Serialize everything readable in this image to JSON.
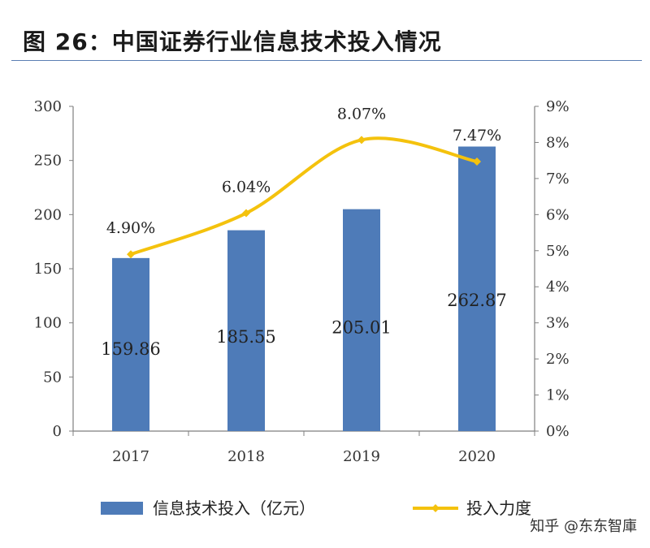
{
  "figure": {
    "title": "图 26：中国证券行业信息技术投入情况",
    "watermark": "知乎 @东东智庫"
  },
  "colors": {
    "bar": "#4e7bb8",
    "line": "#f4c20d",
    "axis": "#7f7f7f",
    "title_rule": "#5b7fb3"
  },
  "chart_data": {
    "type": "bar",
    "categories": [
      "2017",
      "2018",
      "2019",
      "2020"
    ],
    "series": [
      {
        "name": "信息技术投入（亿元）",
        "type": "bar",
        "axis": "left",
        "values": [
          159.86,
          185.55,
          205.01,
          262.87
        ],
        "labels": [
          "159.86",
          "185.55",
          "205.01",
          "262.87"
        ]
      },
      {
        "name": "投入力度",
        "type": "line",
        "axis": "right",
        "values": [
          4.9,
          6.04,
          8.07,
          7.47
        ],
        "labels": [
          "4.90%",
          "6.04%",
          "8.07%",
          "7.47%"
        ]
      }
    ],
    "left_axis": {
      "ylim": [
        0,
        300
      ],
      "ticks": [
        "0",
        "50",
        "100",
        "150",
        "200",
        "250",
        "300"
      ]
    },
    "right_axis": {
      "ylim": [
        0,
        9
      ],
      "ticks": [
        "0%",
        "1%",
        "2%",
        "3%",
        "4%",
        "5%",
        "6%",
        "7%",
        "8%",
        "9%"
      ]
    },
    "legend_placement": "bottom",
    "grid": false
  }
}
